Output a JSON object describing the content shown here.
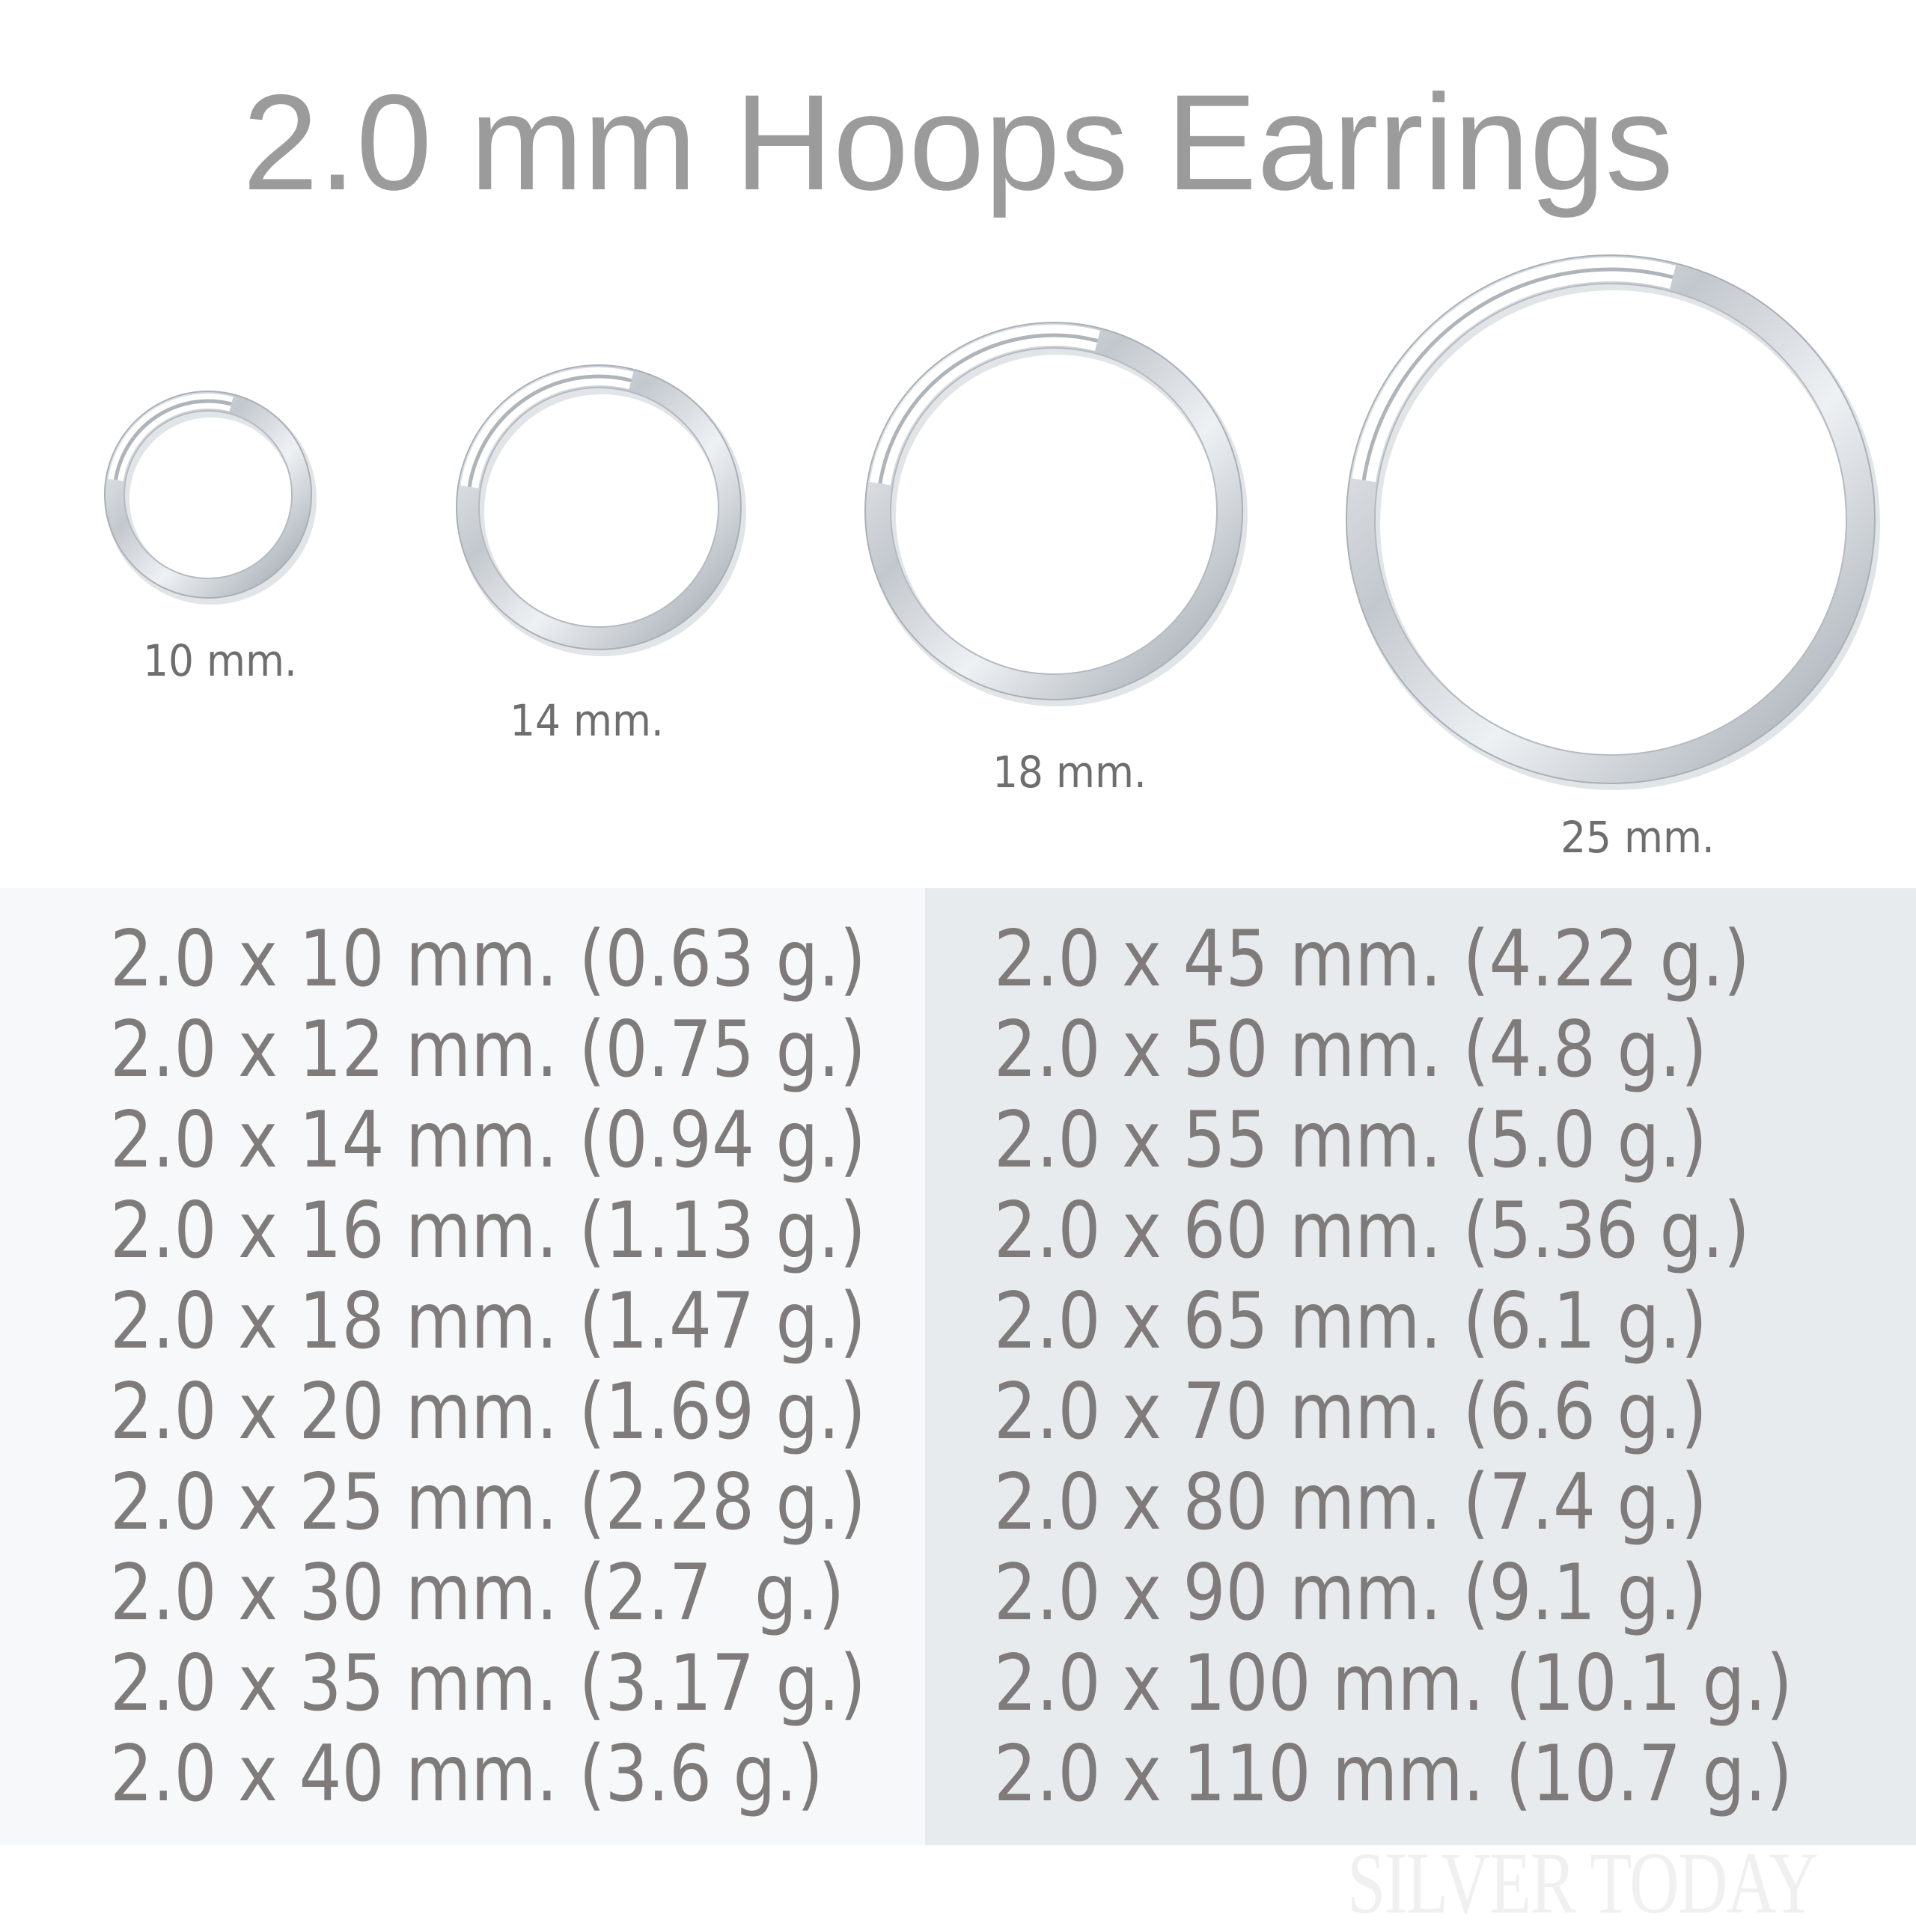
{
  "title": "2.0 mm Hoops Earrings",
  "hoops": [
    {
      "label": "10 mm.",
      "size_mm": 10
    },
    {
      "label": "14 mm.",
      "size_mm": 14
    },
    {
      "label": "18 mm.",
      "size_mm": 18
    },
    {
      "label": "25 mm.",
      "size_mm": 25
    }
  ],
  "sizes_left": [
    "2.0 x 10 mm. (0.63 g.)",
    "2.0 x 12 mm. (0.75 g.)",
    "2.0 x 14 mm. (0.94 g.)",
    "2.0 x 16 mm. (1.13 g.)",
    "2.0 x 18 mm. (1.47 g.)",
    "2.0 x 20 mm. (1.69 g.)",
    "2.0 x 25 mm. (2.28 g.)",
    "2.0 x 30 mm. (2.7  g.)",
    "2.0 x 35 mm. (3.17 g.)",
    "2.0 x 40 mm. (3.6 g.)"
  ],
  "sizes_right": [
    "2.0 x 45 mm. (4.22 g.)",
    "2.0 x 50 mm. (4.8 g.)",
    "2.0 x 55 mm. (5.0 g.)",
    "2.0 x 60 mm. (5.36 g.)",
    "2.0 x 65 mm. (6.1 g.)",
    "2.0 x 70 mm. (6.6 g.)",
    "2.0 x 80 mm. (7.4 g.)",
    "2.0 x 90 mm. (9.1 g.)",
    "2.0 x 100 mm. (10.1 g.)",
    "2.0 x 110 mm. (10.7 g.)"
  ],
  "watermark": "SILVER TODAY",
  "colors": {
    "title": "#9b9b9b",
    "text": "#7f7b7b",
    "panel_left": "#f6f8fa",
    "panel_right": "#e8ebee",
    "silver": "#c9ced3"
  }
}
